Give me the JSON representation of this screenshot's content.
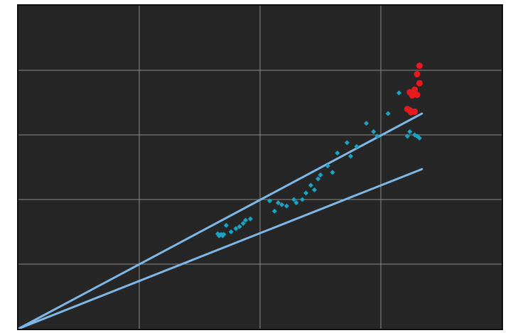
{
  "chart_data": {
    "type": "scatter",
    "title": "",
    "xlabel": "",
    "ylabel": "",
    "grid": true,
    "xlim": [
      0,
      4
    ],
    "ylim": [
      0,
      5
    ],
    "colors": {
      "background": "#262626",
      "grid": "#8a8a8a",
      "frame": "#0e0e0e",
      "lines": "#7fb8e6",
      "cyan_points": "#1aa3c2",
      "red_points": "#e8191f"
    },
    "lines": [
      {
        "x": [
          0,
          3.34
        ],
        "y": [
          0,
          3.33
        ]
      },
      {
        "x": [
          0,
          3.34
        ],
        "y": [
          0,
          2.47
        ]
      }
    ],
    "series": [
      {
        "color": "cyan",
        "points": [
          [
            1.65,
            1.47
          ],
          [
            1.67,
            1.45
          ],
          [
            1.68,
            1.46
          ],
          [
            1.69,
            1.44
          ],
          [
            1.7,
            1.46
          ],
          [
            1.66,
            1.44
          ],
          [
            1.72,
            1.6
          ],
          [
            1.76,
            1.5
          ],
          [
            1.8,
            1.55
          ],
          [
            1.83,
            1.58
          ],
          [
            1.86,
            1.63
          ],
          [
            1.88,
            1.68
          ],
          [
            1.92,
            1.7
          ],
          [
            2.08,
            1.98
          ],
          [
            2.12,
            1.82
          ],
          [
            2.15,
            1.95
          ],
          [
            2.18,
            1.92
          ],
          [
            2.22,
            1.9
          ],
          [
            2.28,
            2.0
          ],
          [
            2.3,
            1.95
          ],
          [
            2.35,
            2.0
          ],
          [
            2.38,
            2.1
          ],
          [
            2.42,
            2.22
          ],
          [
            2.45,
            2.15
          ],
          [
            2.48,
            2.32
          ],
          [
            2.5,
            2.38
          ],
          [
            2.56,
            2.52
          ],
          [
            2.6,
            2.42
          ],
          [
            2.64,
            2.72
          ],
          [
            2.72,
            2.88
          ],
          [
            2.75,
            2.67
          ],
          [
            2.8,
            2.82
          ],
          [
            2.88,
            3.18
          ],
          [
            2.94,
            3.05
          ],
          [
            2.97,
            2.98
          ],
          [
            3.06,
            3.33
          ],
          [
            3.15,
            3.65
          ],
          [
            3.22,
            2.98
          ],
          [
            3.24,
            3.05
          ],
          [
            3.28,
            3.0
          ],
          [
            3.3,
            2.98
          ],
          [
            3.32,
            2.95
          ]
        ]
      },
      {
        "color": "red",
        "points": [
          [
            3.32,
            4.07
          ],
          [
            3.3,
            3.94
          ],
          [
            3.32,
            3.8
          ],
          [
            3.28,
            3.7
          ],
          [
            3.24,
            3.66
          ],
          [
            3.26,
            3.61
          ],
          [
            3.3,
            3.62
          ],
          [
            3.22,
            3.4
          ],
          [
            3.24,
            3.38
          ],
          [
            3.26,
            3.36
          ],
          [
            3.28,
            3.36
          ],
          [
            3.25,
            3.35
          ]
        ]
      }
    ]
  }
}
